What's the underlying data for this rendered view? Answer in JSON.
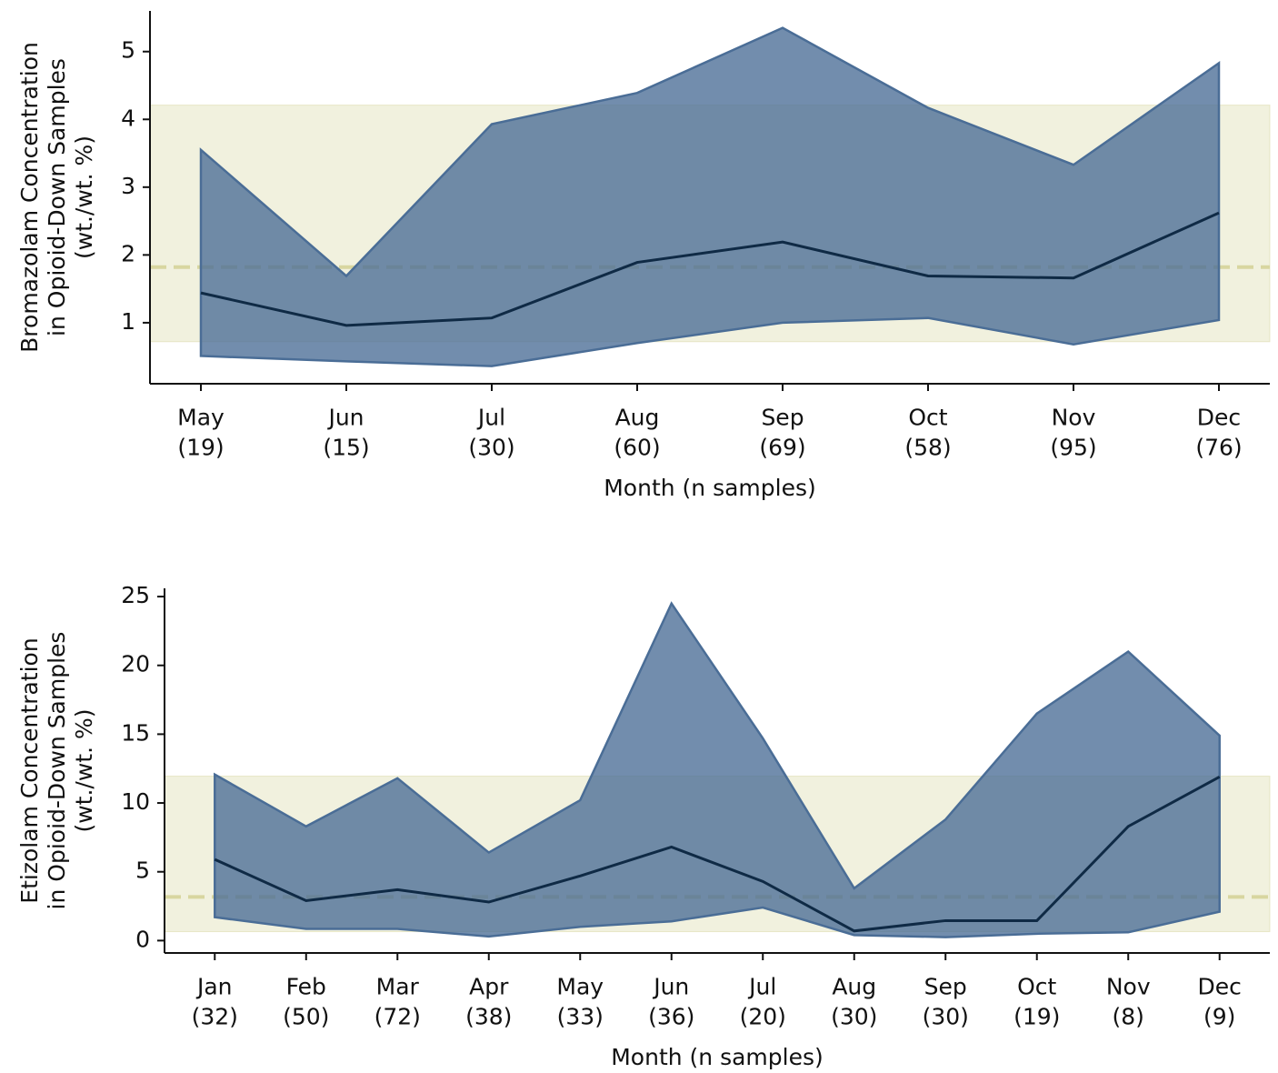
{
  "chart_data": [
    {
      "type": "band-line",
      "categories": [
        "May\n(19)",
        "Jun\n(15)",
        "Jul\n(30)",
        "Aug\n(60)",
        "Sep\n(69)",
        "Oct\n(58)",
        "Nov\n(95)",
        "Dec\n(76)"
      ],
      "xlabel": "Month (n samples)",
      "ylabel": "Bromazolam Concentration\nin Opioid-Down Samples\n(wt./wt. %)",
      "median": [
        1.44,
        0.96,
        1.07,
        1.89,
        2.19,
        1.69,
        1.66,
        2.62
      ],
      "lower": [
        0.51,
        0.43,
        0.36,
        0.7,
        1.0,
        1.07,
        0.68,
        1.04
      ],
      "upper": [
        3.55,
        1.69,
        3.93,
        4.39,
        5.35,
        4.17,
        3.33,
        4.83
      ],
      "band_color": "#4a6d96",
      "line_color": "#0f2a45",
      "reference_band": [
        0.72,
        4.21
      ],
      "reference_line": 1.82,
      "reference_color": "#d8d6a0",
      "ylim": [
        0.1,
        5.6
      ],
      "yticks": [
        1,
        2,
        3,
        4,
        5
      ]
    },
    {
      "type": "band-line",
      "categories": [
        "Jan\n(32)",
        "Feb\n(50)",
        "Mar\n(72)",
        "Apr\n(38)",
        "May\n(33)",
        "Jun\n(36)",
        "Jul\n(20)",
        "Aug\n(30)",
        "Sep\n(30)",
        "Oct\n(19)",
        "Nov\n(8)",
        "Dec\n(9)"
      ],
      "xlabel": "Month (n samples)",
      "ylabel": "Etizolam Concentration\nin Opioid-Down Samples\n(wt./wt. %)",
      "median": [
        5.9,
        2.9,
        3.7,
        2.8,
        4.7,
        6.8,
        4.3,
        0.7,
        1.45,
        1.45,
        8.3,
        11.9
      ],
      "lower": [
        1.7,
        0.85,
        0.85,
        0.3,
        1.0,
        1.4,
        2.4,
        0.4,
        0.25,
        0.5,
        0.6,
        2.1
      ],
      "upper": [
        12.07,
        8.3,
        11.8,
        6.4,
        10.2,
        24.5,
        14.7,
        3.8,
        8.8,
        16.5,
        21.0,
        14.9
      ],
      "band_color": "#4a6d96",
      "line_color": "#0f2a45",
      "reference_band": [
        0.65,
        11.95
      ],
      "reference_line": 3.17,
      "reference_color": "#d8d6a0",
      "ylim": [
        -0.9,
        25.6
      ],
      "yticks": [
        0,
        5,
        10,
        15,
        20,
        25
      ]
    }
  ]
}
